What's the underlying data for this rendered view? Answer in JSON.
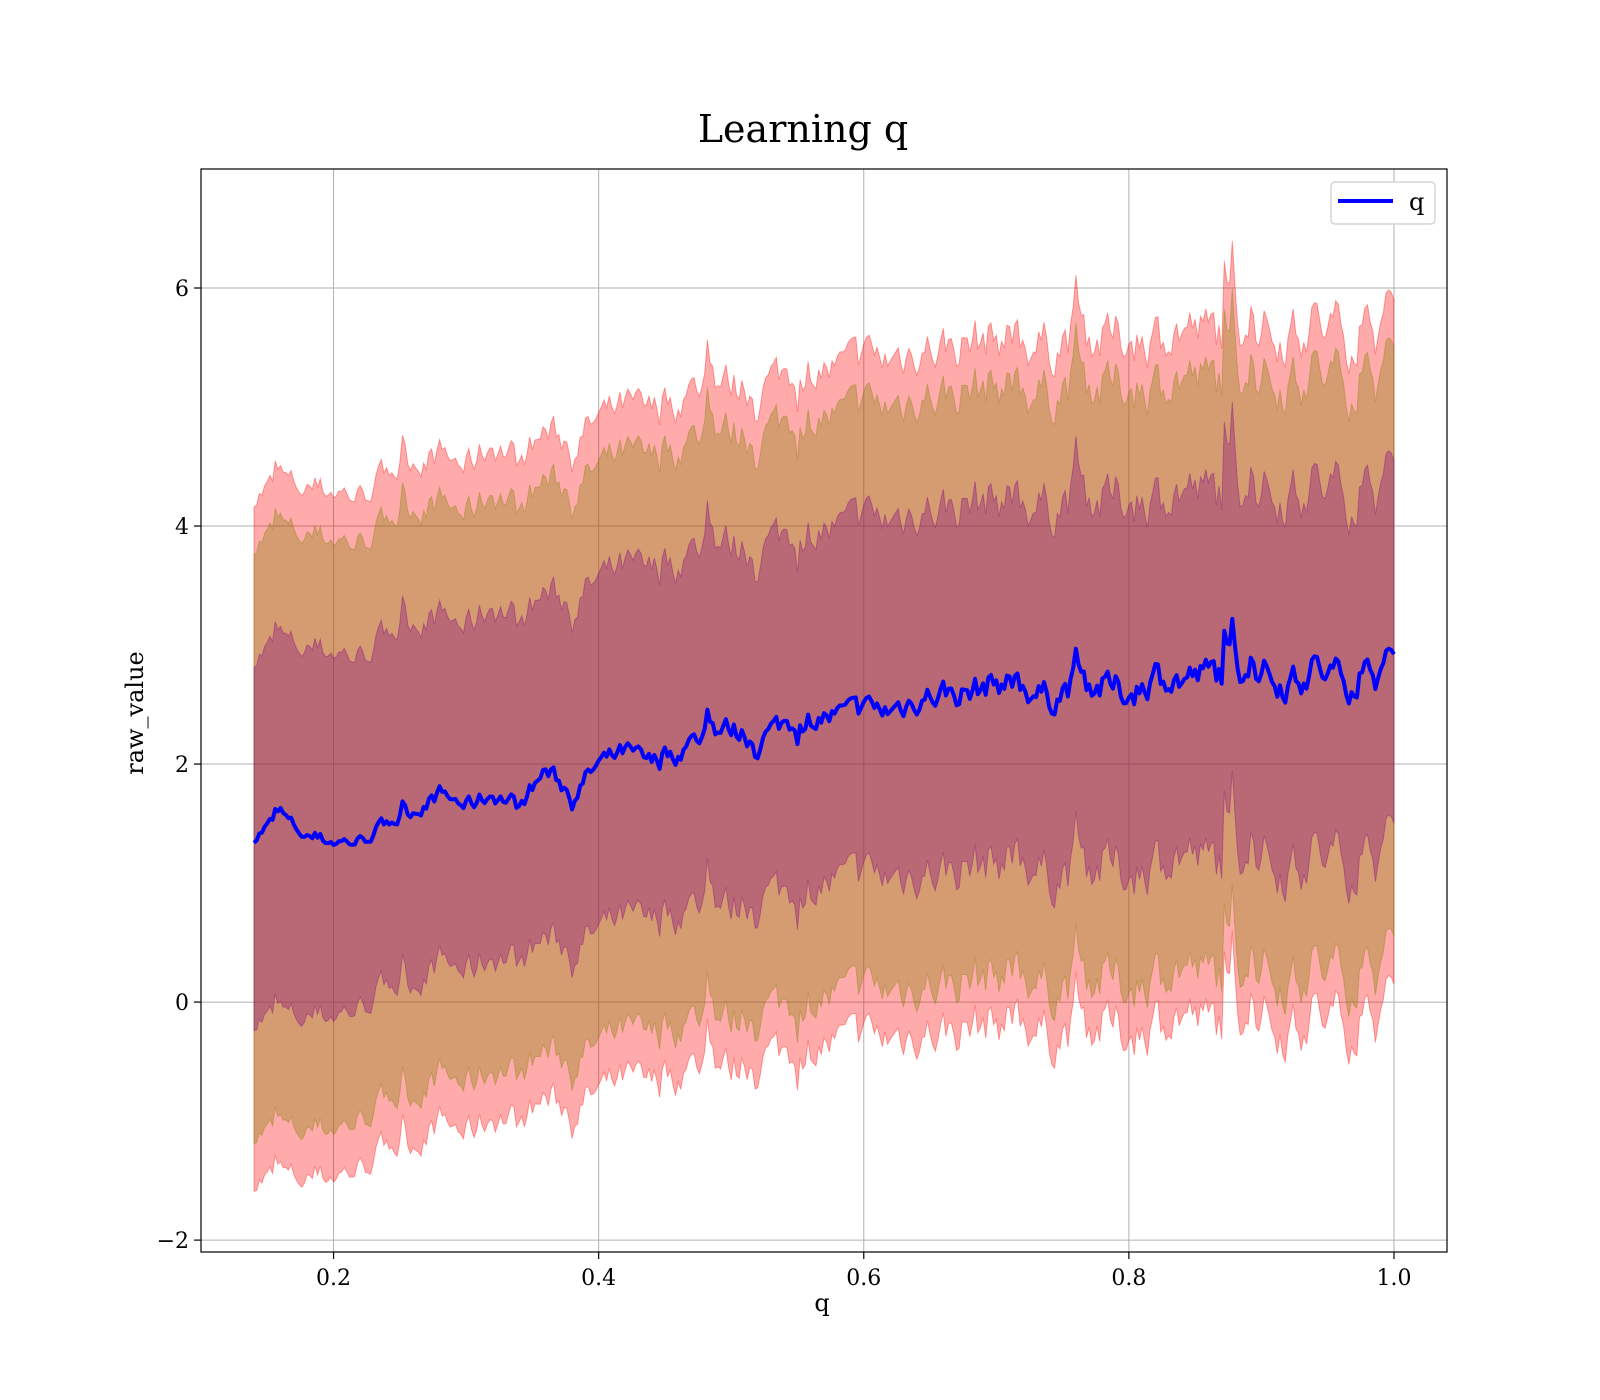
{
  "chart_data": {
    "type": "line",
    "title": "Learning q",
    "xlabel": "q",
    "ylabel": "raw_value",
    "xlim": [
      0.1,
      1.04
    ],
    "ylim": [
      -2.1,
      7.0
    ],
    "xticks": [
      0.2,
      0.4,
      0.6,
      0.8,
      1.0
    ],
    "xtick_labels": [
      "0.2",
      "0.4",
      "0.6",
      "0.8",
      "1.0"
    ],
    "yticks": [
      -2,
      0,
      2,
      4,
      6
    ],
    "ytick_labels": [
      "−2",
      "0",
      "2",
      "4",
      "6"
    ],
    "grid": true,
    "legend": {
      "position": "top-right",
      "entries": [
        "q"
      ]
    },
    "x_range": [
      0.14,
      1.0
    ],
    "series": [
      {
        "name": "q",
        "color": "#0000ff",
        "x": [
          0.14,
          0.16,
          0.18,
          0.2,
          0.22,
          0.24,
          0.26,
          0.28,
          0.3,
          0.32,
          0.34,
          0.36,
          0.38,
          0.4,
          0.42,
          0.44,
          0.46,
          0.48,
          0.5,
          0.52,
          0.54,
          0.56,
          0.58,
          0.6,
          0.62,
          0.64,
          0.66,
          0.68,
          0.7,
          0.72,
          0.74,
          0.76,
          0.78,
          0.8,
          0.82,
          0.84,
          0.86,
          0.88,
          0.9,
          0.92,
          0.94,
          0.96,
          0.98,
          1.0
        ],
        "y": [
          1.38,
          1.58,
          1.38,
          1.35,
          1.35,
          1.5,
          1.6,
          1.75,
          1.65,
          1.75,
          1.65,
          1.95,
          1.75,
          2.0,
          2.1,
          2.0,
          2.1,
          2.25,
          2.3,
          2.2,
          2.35,
          2.4,
          2.4,
          2.45,
          2.45,
          2.55,
          2.6,
          2.6,
          2.7,
          2.65,
          2.55,
          2.7,
          2.65,
          2.6,
          2.75,
          2.7,
          2.75,
          2.8,
          2.75,
          2.7,
          2.8,
          2.7,
          2.75,
          2.8
        ]
      }
    ],
    "bands": [
      {
        "color": "#ff0000",
        "opacity": 0.33,
        "lower": [
          -1.5,
          -1.45,
          -1.5,
          -1.45,
          -1.4,
          -1.2,
          -1.2,
          -1.0,
          -1.1,
          -0.95,
          -1.0,
          -0.8,
          -0.9,
          -0.75,
          -0.65,
          -0.7,
          -0.6,
          -0.5,
          -0.55,
          -0.45,
          -0.4,
          -0.35,
          -0.35,
          -0.3,
          -0.3,
          -0.25,
          -0.25,
          -0.2,
          -0.15,
          -0.15,
          -0.3,
          -0.2,
          -0.2,
          -0.25,
          -0.15,
          -0.1,
          -0.2,
          -0.1,
          -0.15,
          -0.2,
          -0.1,
          -0.2,
          -0.15,
          -0.05
        ],
        "upper": [
          4.25,
          4.4,
          4.3,
          4.3,
          4.25,
          4.45,
          4.55,
          4.6,
          4.5,
          4.7,
          4.55,
          4.8,
          4.7,
          4.9,
          5.0,
          4.95,
          5.05,
          5.2,
          5.2,
          5.15,
          5.3,
          5.35,
          5.3,
          5.4,
          5.4,
          5.5,
          5.5,
          5.55,
          5.6,
          5.55,
          5.5,
          5.65,
          5.55,
          5.6,
          5.6,
          5.65,
          5.6,
          5.7,
          5.6,
          5.65,
          5.7,
          5.6,
          5.65,
          5.7
        ]
      },
      {
        "color": "#808000",
        "opacity": 0.33,
        "lower": [
          -1.1,
          -1.05,
          -1.1,
          -1.05,
          -1.0,
          -0.8,
          -0.8,
          -0.6,
          -0.7,
          -0.55,
          -0.6,
          -0.4,
          -0.5,
          -0.35,
          -0.25,
          -0.3,
          -0.2,
          -0.1,
          -0.15,
          -0.05,
          0.0,
          0.05,
          0.05,
          0.1,
          0.1,
          0.15,
          0.15,
          0.2,
          0.25,
          0.25,
          0.1,
          0.2,
          0.2,
          0.15,
          0.25,
          0.3,
          0.2,
          0.3,
          0.25,
          0.2,
          0.3,
          0.2,
          0.25,
          0.35
        ],
        "upper": [
          3.85,
          4.0,
          3.9,
          3.9,
          3.85,
          4.05,
          4.15,
          4.2,
          4.1,
          4.3,
          4.15,
          4.4,
          4.3,
          4.5,
          4.6,
          4.55,
          4.65,
          4.8,
          4.8,
          4.75,
          4.9,
          4.95,
          4.9,
          5.0,
          5.0,
          5.1,
          5.1,
          5.15,
          5.2,
          5.15,
          5.1,
          5.25,
          5.15,
          5.2,
          5.2,
          5.25,
          5.2,
          5.3,
          5.2,
          5.25,
          5.3,
          5.2,
          5.25,
          5.3
        ]
      },
      {
        "color": "#800080",
        "opacity": 0.33,
        "lower": [
          -0.15,
          -0.1,
          -0.15,
          -0.1,
          -0.05,
          0.15,
          0.15,
          0.35,
          0.25,
          0.4,
          0.35,
          0.55,
          0.45,
          0.6,
          0.7,
          0.65,
          0.75,
          0.85,
          0.8,
          0.9,
          0.95,
          1.0,
          1.0,
          1.05,
          1.05,
          1.1,
          1.1,
          1.15,
          1.2,
          1.2,
          1.05,
          1.15,
          1.15,
          1.1,
          1.2,
          1.25,
          1.15,
          1.25,
          1.2,
          1.15,
          1.25,
          1.15,
          1.2,
          1.3
        ],
        "upper": [
          2.9,
          3.05,
          2.95,
          2.95,
          2.9,
          3.1,
          3.2,
          3.25,
          3.15,
          3.35,
          3.2,
          3.45,
          3.35,
          3.55,
          3.65,
          3.6,
          3.7,
          3.85,
          3.85,
          3.8,
          3.95,
          4.0,
          3.95,
          4.05,
          4.05,
          4.15,
          4.15,
          4.2,
          4.25,
          4.2,
          4.15,
          4.3,
          4.2,
          4.25,
          4.25,
          4.3,
          4.25,
          4.35,
          4.25,
          4.3,
          4.35,
          4.25,
          4.3,
          4.35
        ]
      }
    ]
  }
}
